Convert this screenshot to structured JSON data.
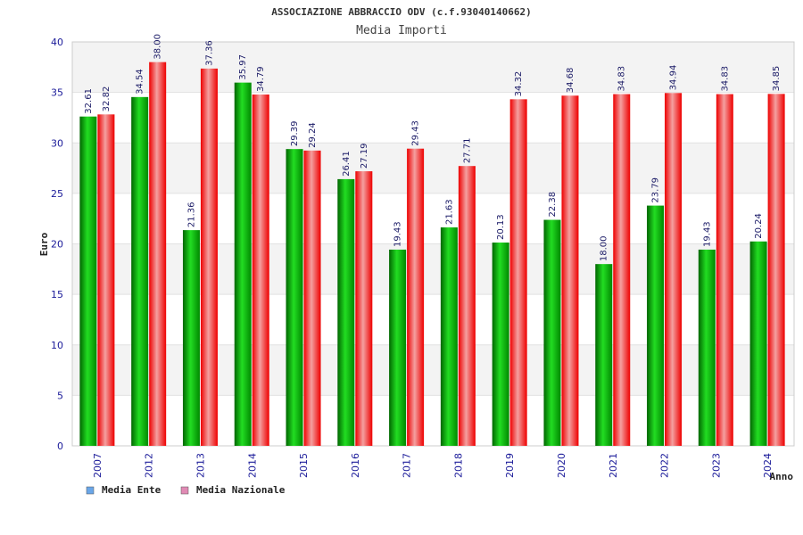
{
  "chart_data": {
    "type": "bar",
    "title": "ASSOCIAZIONE ABBRACCIO ODV (c.f.93040140662)",
    "subtitle": "Media Importi",
    "xlabel": "Anno",
    "ylabel": "Euro",
    "ylim": [
      0,
      40
    ],
    "yticks": [
      0,
      5,
      10,
      15,
      20,
      25,
      30,
      35,
      40
    ],
    "categories": [
      "2007",
      "2012",
      "2013",
      "2014",
      "2015",
      "2016",
      "2017",
      "2018",
      "2019",
      "2020",
      "2021",
      "2022",
      "2023",
      "2024"
    ],
    "series": [
      {
        "name": "Media Ente",
        "legend_color": "#6aa6e8",
        "values": [
          32.61,
          34.54,
          21.36,
          35.97,
          29.39,
          26.41,
          19.43,
          21.63,
          20.13,
          22.38,
          18.0,
          23.79,
          19.43,
          20.24
        ],
        "labels": [
          "32.61",
          "34.54",
          "21.36",
          "35.97",
          "29.39",
          "26.41",
          "19.43",
          "21.63",
          "20.13",
          "22.38",
          "18.00",
          "23.79",
          "19.43",
          "20.24"
        ]
      },
      {
        "name": "Media Nazionale",
        "legend_color": "#e08ab4",
        "values": [
          32.82,
          38.0,
          37.36,
          34.79,
          29.24,
          27.19,
          29.43,
          27.71,
          34.32,
          34.68,
          34.83,
          34.94,
          34.83,
          34.85
        ],
        "labels": [
          "32.82",
          "38.00",
          "37.36",
          "34.79",
          "29.24",
          "27.19",
          "29.43",
          "27.71",
          "34.32",
          "34.68",
          "34.83",
          "34.94",
          "34.83",
          "34.85"
        ]
      }
    ],
    "grid": true,
    "legend_position": "bottom-left"
  }
}
